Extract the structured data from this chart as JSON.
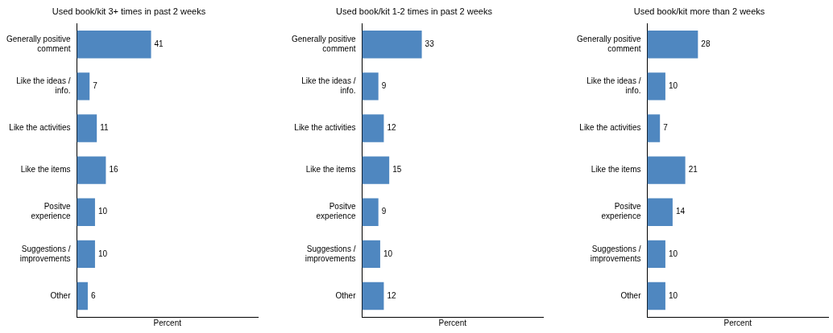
{
  "chart_data": [
    {
      "type": "bar",
      "orientation": "horizontal",
      "title": "Used book/kit 3+ times in past 2 weeks",
      "xlabel": "Percent",
      "categories": [
        "Generally positive comment",
        "Like the ideas / info.",
        "Like the activities",
        "Like the items",
        "Positve experience",
        "Suggestions / improvements",
        "Other"
      ],
      "values": [
        41,
        7,
        11,
        16,
        10,
        10,
        6
      ],
      "color": "#4f87c0",
      "data_labels": true,
      "xlim": [
        0,
        100
      ],
      "tick_labels": "y",
      "grid": false,
      "legend": false
    },
    {
      "type": "bar",
      "orientation": "horizontal",
      "title": "Used book/kit 1-2 times in past 2 weeks",
      "xlabel": "Percent",
      "categories": [
        "Generally positive comment",
        "Like the ideas / info.",
        "Like the activities",
        "Like the items",
        "Positve experience",
        "Suggestions / improvements",
        "Other"
      ],
      "values": [
        33,
        9,
        12,
        15,
        9,
        10,
        12
      ],
      "color": "#4f87c0",
      "data_labels": true,
      "xlim": [
        0,
        100
      ],
      "tick_labels": "y",
      "grid": false,
      "legend": false
    },
    {
      "type": "bar",
      "orientation": "horizontal",
      "title": "Used book/kit more than 2 weeks",
      "xlabel": "Percent",
      "categories": [
        "Generally positive comment",
        "Like the ideas / info.",
        "Like the activities",
        "Like the items",
        "Positve experience",
        "Suggestions / improvements",
        "Other"
      ],
      "values": [
        28,
        10,
        7,
        21,
        14,
        10,
        10
      ],
      "color": "#4f87c0",
      "data_labels": true,
      "xlim": [
        0,
        100
      ],
      "tick_labels": "y",
      "grid": false,
      "legend": false
    }
  ]
}
